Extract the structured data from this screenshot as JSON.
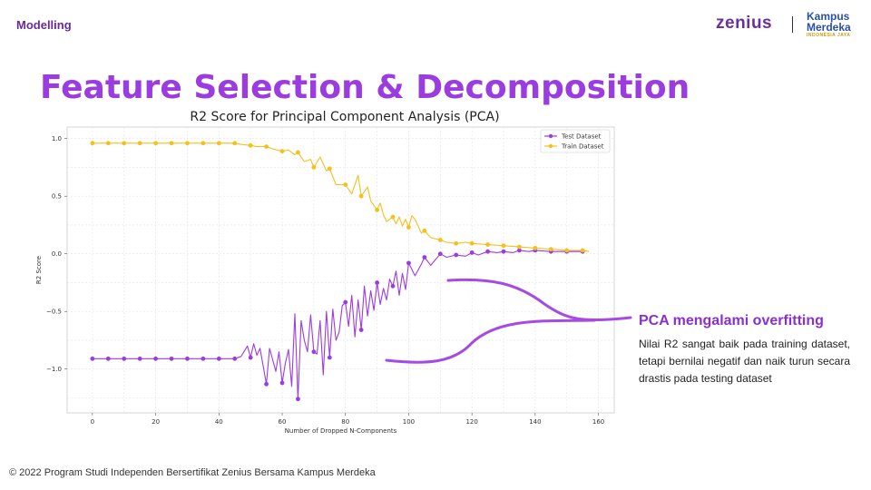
{
  "header": {
    "section_label": "Modelling"
  },
  "logos": {
    "zenius": "zenius",
    "kampus_line1": "Kampus",
    "kampus_line2": "Merdeka",
    "kampus_sub": "INDONESIA JAYA"
  },
  "title": "Feature Selection & Decomposition",
  "note": {
    "title": "PCA mengalami overfitting",
    "body": "Nilai R2 sangat baik pada training dataset, tetapi bernilai negatif dan naik turun secara drastis pada testing dataset"
  },
  "footer": "© 2022 Program Studi Independen Bersertifikat Zenius Bersama Kampus Merdeka",
  "colors": {
    "accent": "#9b3ce0",
    "test": "#9b3ce0",
    "train": "#f4c01c",
    "annotation": "#a64ae6"
  },
  "chart_data": {
    "type": "line",
    "title": "R2 Score for Principal Component Analysis (PCA)",
    "xlabel": "Number of Dropped N-Components",
    "ylabel": "R2 Score",
    "xlim": [
      -8,
      165
    ],
    "ylim": [
      -1.38,
      1.1
    ],
    "xticks": [
      0,
      20,
      40,
      60,
      80,
      100,
      120,
      140,
      160
    ],
    "yticks": [
      -1.0,
      -0.5,
      0.0,
      0.5,
      1.0
    ],
    "ytick_labels": [
      "−1.0",
      "−0.5",
      "0.0",
      "0.5",
      "1.0"
    ],
    "grid": true,
    "legend_position": "top-right",
    "series": [
      {
        "name": "Test Dataset",
        "color": "#9b3ce0",
        "points": [
          [
            0,
            -0.91
          ],
          [
            5,
            -0.91
          ],
          [
            10,
            -0.91
          ],
          [
            15,
            -0.91
          ],
          [
            20,
            -0.91
          ],
          [
            25,
            -0.91
          ],
          [
            30,
            -0.91
          ],
          [
            35,
            -0.91
          ],
          [
            40,
            -0.91
          ],
          [
            45,
            -0.91
          ],
          [
            47,
            -0.89
          ],
          [
            49,
            -0.8
          ],
          [
            50,
            -0.9
          ],
          [
            51,
            -0.78
          ],
          [
            52,
            -0.88
          ],
          [
            53,
            -0.82
          ],
          [
            55,
            -1.13
          ],
          [
            56,
            -0.82
          ],
          [
            57,
            -0.92
          ],
          [
            58,
            -1.02
          ],
          [
            59,
            -0.85
          ],
          [
            60,
            -1.12
          ],
          [
            61,
            -0.95
          ],
          [
            62,
            -0.83
          ],
          [
            63,
            -1.15
          ],
          [
            64,
            -0.52
          ],
          [
            65,
            -1.26
          ],
          [
            66,
            -0.58
          ],
          [
            67,
            -0.75
          ],
          [
            68,
            -0.85
          ],
          [
            69,
            -0.53
          ],
          [
            70,
            -0.85
          ],
          [
            71,
            -0.87
          ],
          [
            72,
            -0.58
          ],
          [
            73,
            -1.05
          ],
          [
            74,
            -0.5
          ],
          [
            75,
            -0.9
          ],
          [
            76,
            -0.48
          ],
          [
            77,
            -0.75
          ],
          [
            78,
            -0.68
          ],
          [
            79,
            -0.45
          ],
          [
            80,
            -0.42
          ],
          [
            81,
            -0.63
          ],
          [
            82,
            -0.36
          ],
          [
            83,
            -0.72
          ],
          [
            84,
            -0.4
          ],
          [
            85,
            -0.66
          ],
          [
            86,
            -0.28
          ],
          [
            87,
            -0.54
          ],
          [
            88,
            -0.32
          ],
          [
            89,
            -0.49
          ],
          [
            90,
            -0.25
          ],
          [
            91,
            -0.44
          ],
          [
            92,
            -0.3
          ],
          [
            93,
            -0.4
          ],
          [
            94,
            -0.22
          ],
          [
            95,
            -0.28
          ],
          [
            96,
            -0.15
          ],
          [
            97,
            -0.36
          ],
          [
            98,
            -0.17
          ],
          [
            99,
            -0.31
          ],
          [
            100,
            -0.08
          ],
          [
            102,
            -0.19
          ],
          [
            104,
            -0.09
          ],
          [
            105,
            -0.03
          ],
          [
            107,
            -0.1
          ],
          [
            110,
            0.0
          ],
          [
            112,
            -0.03
          ],
          [
            115,
            -0.01
          ],
          [
            118,
            -0.02
          ],
          [
            120,
            0.01
          ],
          [
            122,
            -0.01
          ],
          [
            125,
            0.02
          ],
          [
            128,
            0.01
          ],
          [
            130,
            0.02
          ],
          [
            133,
            0.01
          ],
          [
            135,
            0.03
          ],
          [
            138,
            0.02
          ],
          [
            140,
            0.03
          ],
          [
            145,
            0.02
          ],
          [
            150,
            0.02
          ],
          [
            155,
            0.02
          ]
        ],
        "markers": [
          0,
          5,
          10,
          15,
          20,
          25,
          30,
          35,
          40,
          45,
          50,
          55,
          60,
          65,
          70,
          75,
          80,
          85,
          90,
          95,
          100,
          105,
          110,
          115,
          120,
          125,
          130,
          135,
          140,
          145,
          150,
          155
        ]
      },
      {
        "name": "Train Dataset",
        "color": "#f4c01c",
        "points": [
          [
            0,
            0.96
          ],
          [
            5,
            0.96
          ],
          [
            10,
            0.96
          ],
          [
            15,
            0.96
          ],
          [
            20,
            0.96
          ],
          [
            25,
            0.96
          ],
          [
            30,
            0.96
          ],
          [
            35,
            0.96
          ],
          [
            40,
            0.96
          ],
          [
            45,
            0.96
          ],
          [
            47,
            0.95
          ],
          [
            50,
            0.94
          ],
          [
            52,
            0.93
          ],
          [
            55,
            0.93
          ],
          [
            57,
            0.91
          ],
          [
            60,
            0.89
          ],
          [
            62,
            0.9
          ],
          [
            64,
            0.86
          ],
          [
            65,
            0.88
          ],
          [
            67,
            0.8
          ],
          [
            69,
            0.82
          ],
          [
            70,
            0.75
          ],
          [
            72,
            0.84
          ],
          [
            74,
            0.72
          ],
          [
            75,
            0.74
          ],
          [
            77,
            0.6
          ],
          [
            80,
            0.6
          ],
          [
            82,
            0.52
          ],
          [
            84,
            0.68
          ],
          [
            85,
            0.5
          ],
          [
            87,
            0.58
          ],
          [
            88,
            0.46
          ],
          [
            90,
            0.38
          ],
          [
            91,
            0.44
          ],
          [
            92,
            0.34
          ],
          [
            93,
            0.28
          ],
          [
            95,
            0.32
          ],
          [
            96,
            0.26
          ],
          [
            97,
            0.32
          ],
          [
            98,
            0.24
          ],
          [
            99,
            0.3
          ],
          [
            100,
            0.23
          ],
          [
            101,
            0.33
          ],
          [
            102,
            0.3
          ],
          [
            103,
            0.24
          ],
          [
            104,
            0.18
          ],
          [
            105,
            0.2
          ],
          [
            107,
            0.14
          ],
          [
            110,
            0.12
          ],
          [
            112,
            0.1
          ],
          [
            115,
            0.09
          ],
          [
            118,
            0.1
          ],
          [
            120,
            0.09
          ],
          [
            125,
            0.08
          ],
          [
            130,
            0.07
          ],
          [
            135,
            0.06
          ],
          [
            140,
            0.05
          ],
          [
            145,
            0.04
          ],
          [
            150,
            0.03
          ],
          [
            155,
            0.03
          ],
          [
            157,
            0.02
          ]
        ],
        "markers": [
          0,
          5,
          10,
          15,
          20,
          25,
          30,
          35,
          40,
          45,
          50,
          55,
          60,
          65,
          70,
          75,
          80,
          85,
          90,
          95,
          100,
          105,
          110,
          115,
          120,
          125,
          130,
          135,
          140,
          145,
          150,
          155
        ]
      }
    ]
  }
}
